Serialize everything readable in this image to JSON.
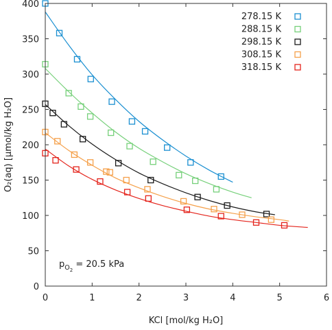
{
  "chart_data": {
    "type": "scatter",
    "xlabel": "KCl [mol/kg H₂O]",
    "ylabel": "O₂(aq) [μmol/kg H₂O]",
    "xlim": [
      0,
      6
    ],
    "ylim": [
      0,
      400
    ],
    "xticks": [
      0,
      1,
      2,
      3,
      4,
      5,
      6
    ],
    "yticks": [
      0,
      50,
      100,
      150,
      200,
      250,
      300,
      350,
      400
    ],
    "grid": false,
    "legend_position": "top-right",
    "annotation": {
      "prefix": "p",
      "subscript": "O",
      "subsubscript": "2",
      "value": " = 20.5 kPa"
    },
    "series": [
      {
        "name": "278.15 K",
        "color": "#1a8fd1",
        "marker": "open-square",
        "x": [
          0.0,
          0.3,
          0.68,
          0.97,
          1.42,
          1.85,
          2.13,
          2.6,
          3.1,
          3.75
        ],
        "y": [
          400,
          358,
          321,
          293,
          261,
          233,
          219,
          196,
          175,
          155
        ],
        "fit_x": [
          0,
          0.5,
          1.0,
          1.5,
          2.0,
          2.5,
          3.0,
          3.5,
          4.0
        ],
        "fit_y": [
          388,
          341,
          299,
          264,
          233,
          207,
          184,
          164,
          147
        ]
      },
      {
        "name": "288.15 K",
        "color": "#76d07a",
        "marker": "open-square",
        "x": [
          0.0,
          0.5,
          0.76,
          0.96,
          1.4,
          1.8,
          2.3,
          2.85,
          3.2,
          3.65
        ],
        "y": [
          314,
          273,
          254,
          240,
          217,
          198,
          176,
          157,
          149,
          137
        ],
        "fit_x": [
          0,
          0.5,
          1.0,
          1.5,
          2.0,
          2.5,
          3.0,
          3.5,
          4.0,
          4.4
        ],
        "fit_y": [
          308,
          275,
          245,
          218,
          195,
          176,
          159,
          145,
          133,
          125
        ]
      },
      {
        "name": "298.15 K",
        "color": "#1a1a1a",
        "marker": "open-square",
        "x": [
          0.0,
          0.16,
          0.4,
          0.8,
          1.56,
          2.25,
          3.25,
          3.88,
          4.72
        ],
        "y": [
          258,
          245,
          229,
          208,
          174,
          150,
          126,
          114,
          102
        ],
        "fit_x": [
          0,
          0.5,
          1.0,
          1.5,
          2.0,
          2.5,
          3.0,
          3.5,
          4.0,
          4.5,
          4.9
        ],
        "fit_y": [
          257,
          227,
          201,
          179,
          160,
          145,
          132,
          121,
          112,
          105,
          101
        ]
      },
      {
        "name": "308.15 K",
        "color": "#f5a04a",
        "marker": "open-square",
        "x": [
          0.0,
          0.26,
          0.62,
          0.96,
          1.3,
          1.38,
          1.73,
          2.18,
          2.95,
          3.6,
          4.2,
          4.82
        ],
        "y": [
          218,
          205,
          186,
          175,
          162,
          161,
          150,
          137,
          120,
          109,
          101,
          94
        ],
        "fit_x": [
          0,
          0.5,
          1.0,
          1.5,
          2.0,
          2.5,
          3.0,
          3.5,
          4.0,
          4.5,
          5.0,
          5.2
        ],
        "fit_y": [
          217,
          192,
          171,
          153,
          139,
          127,
          117,
          109,
          103,
          98,
          94,
          92
        ]
      },
      {
        "name": "318.15 K",
        "color": "#e4231b",
        "marker": "open-square",
        "x": [
          0.0,
          0.22,
          0.66,
          1.17,
          1.75,
          2.2,
          3.02,
          3.75,
          4.5,
          5.1
        ],
        "y": [
          188,
          178,
          165,
          148,
          133,
          124,
          108,
          99,
          90,
          86
        ],
        "fit_x": [
          0,
          0.5,
          1.0,
          1.5,
          2.0,
          2.5,
          3.0,
          3.5,
          4.0,
          4.5,
          5.0,
          5.6
        ],
        "fit_y": [
          194,
          170,
          151,
          136,
          124,
          114,
          106,
          99,
          94,
          90,
          86,
          83
        ]
      }
    ]
  }
}
